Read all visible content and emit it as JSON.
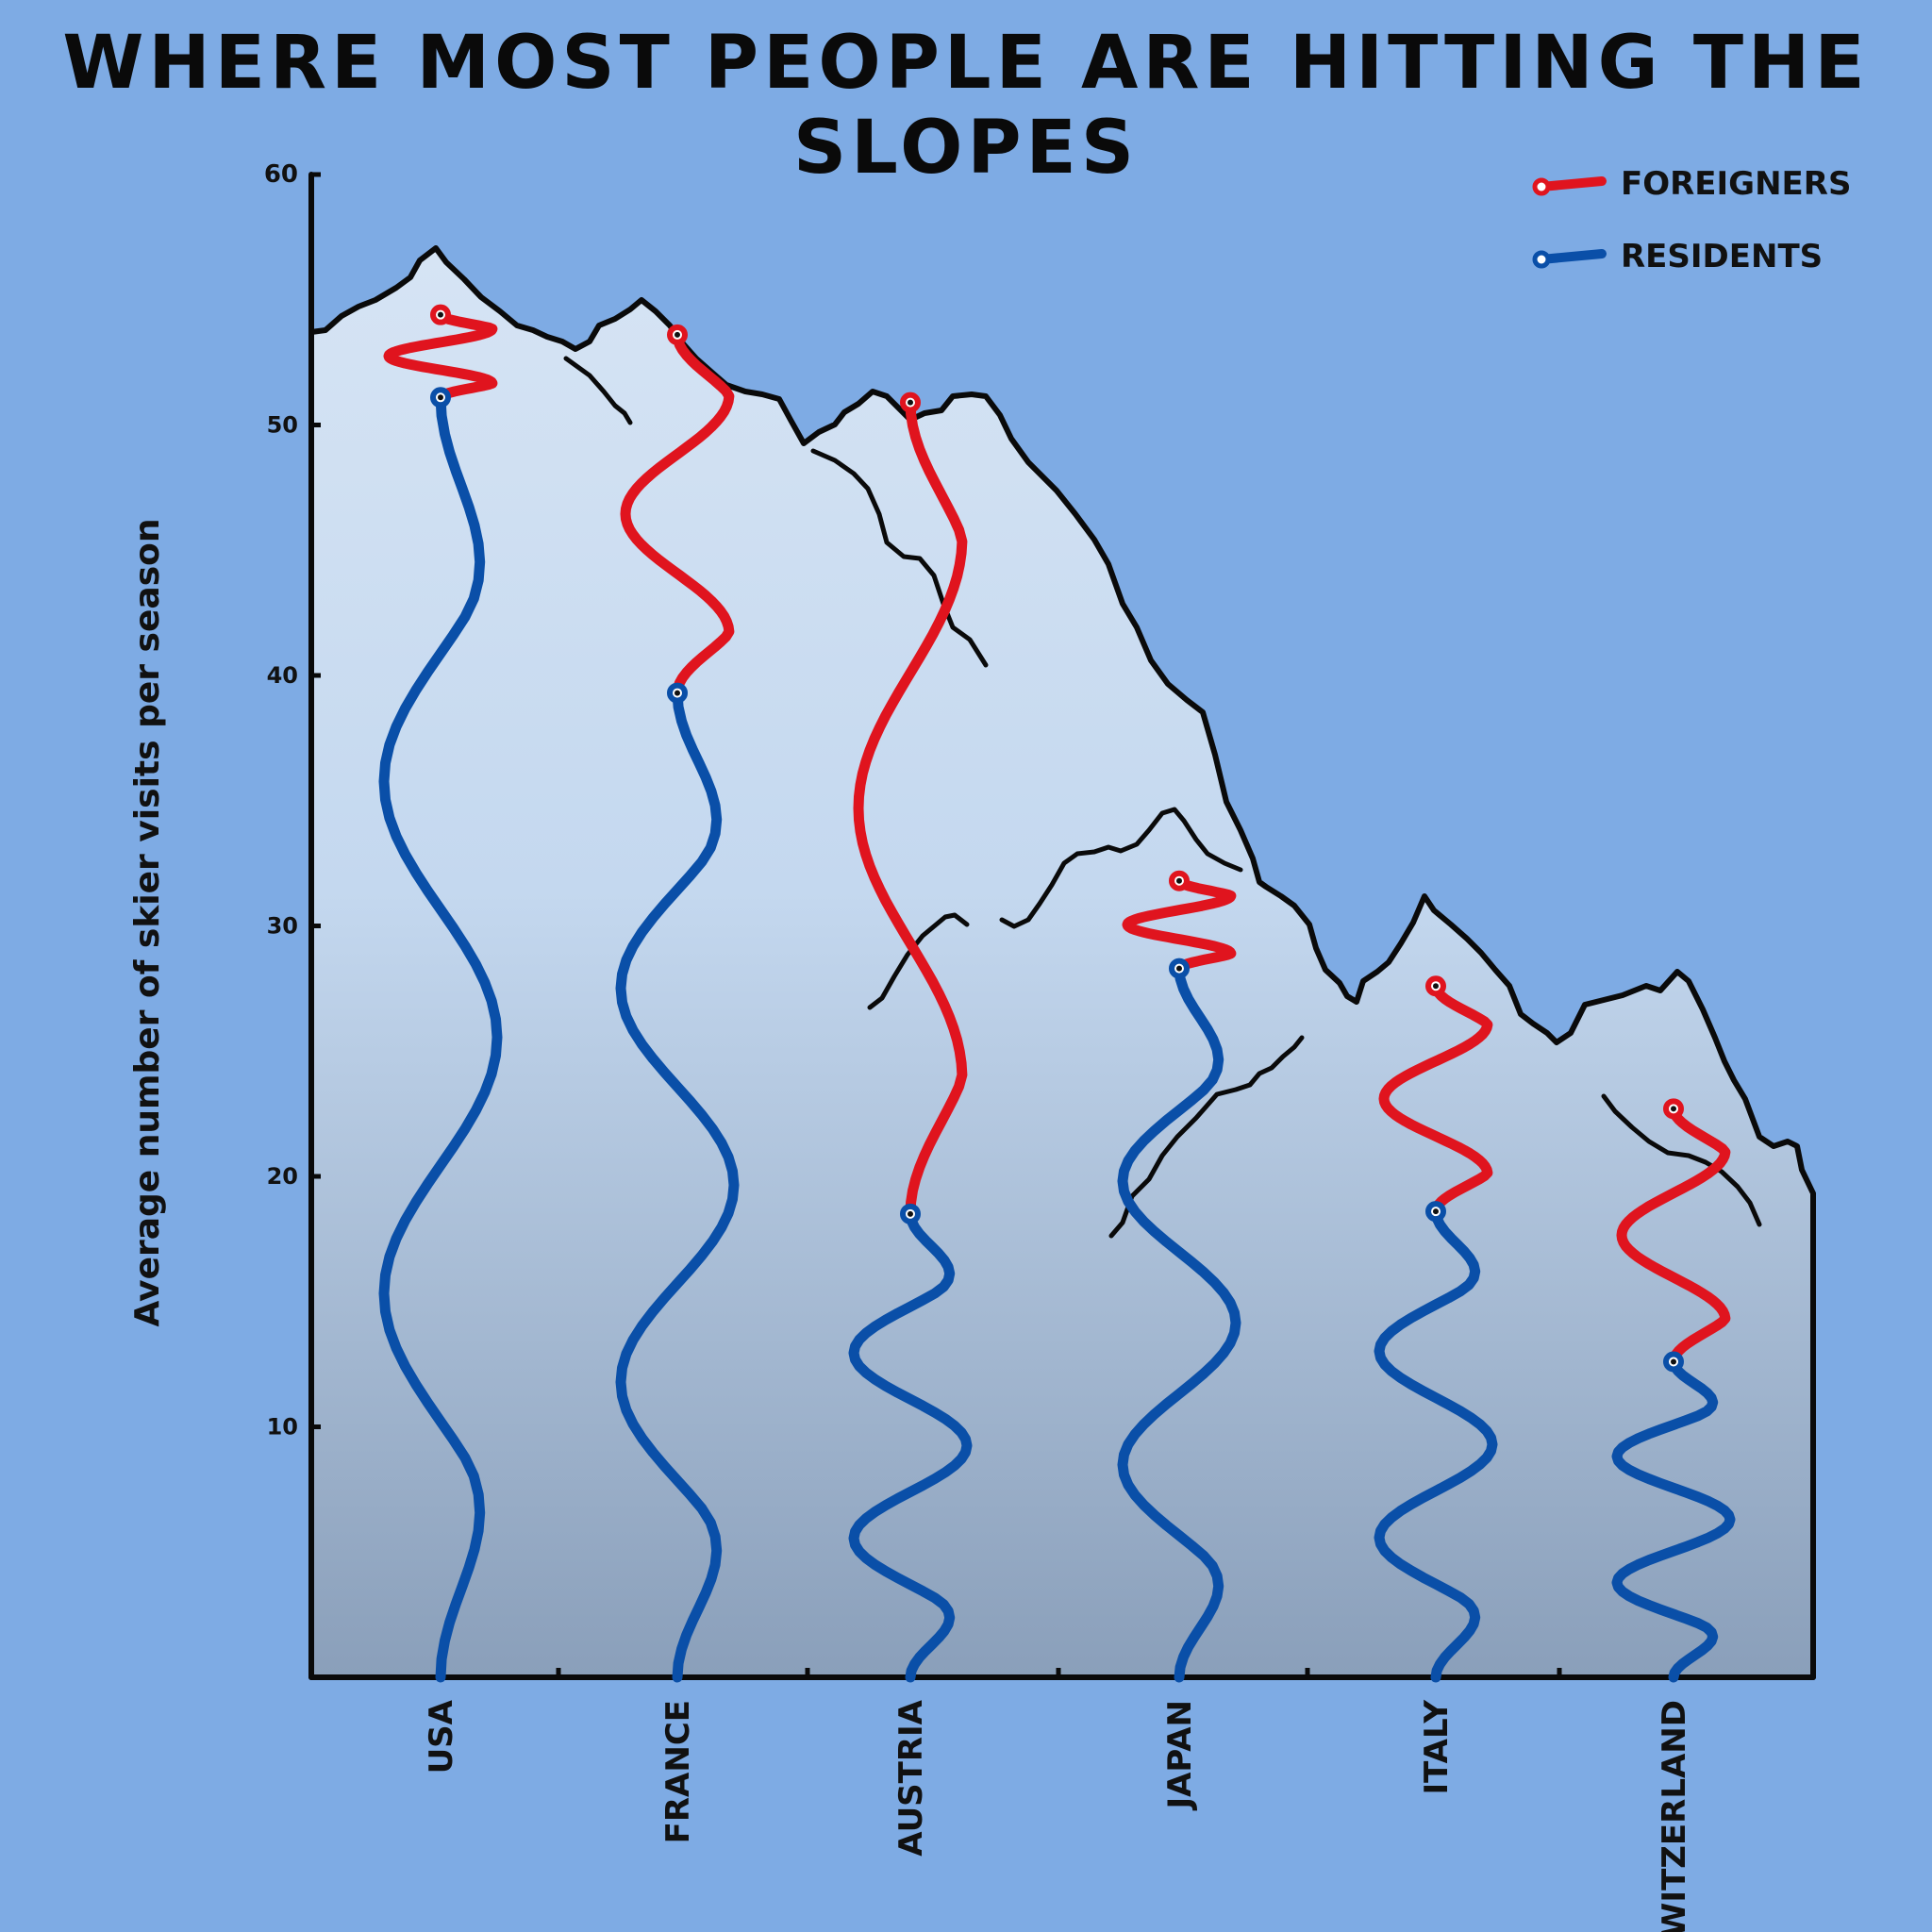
{
  "chart_data": {
    "type": "line",
    "title": "WHERE MOST PEOPLE ARE HITTING THE SLOPES",
    "ylabel": "Average number of skier visits per season",
    "xlabel": "",
    "ylim": [
      0,
      60
    ],
    "yticks": [
      10,
      20,
      30,
      40,
      50,
      60
    ],
    "categories": [
      "USA",
      "FRANCE",
      "AUSTRIA",
      "JAPAN",
      "ITALY",
      "SWITZERLAND"
    ],
    "legend_position": "top-right",
    "series": [
      {
        "name": "FOREIGNERS",
        "color": "#e0141e",
        "values": [
          54.4,
          53.6,
          50.9,
          31.8,
          27.6,
          22.7
        ]
      },
      {
        "name": "RESIDENTS",
        "color": "#0a4fa8",
        "values": [
          51.1,
          39.3,
          18.5,
          28.3,
          18.6,
          12.6
        ]
      }
    ]
  }
}
